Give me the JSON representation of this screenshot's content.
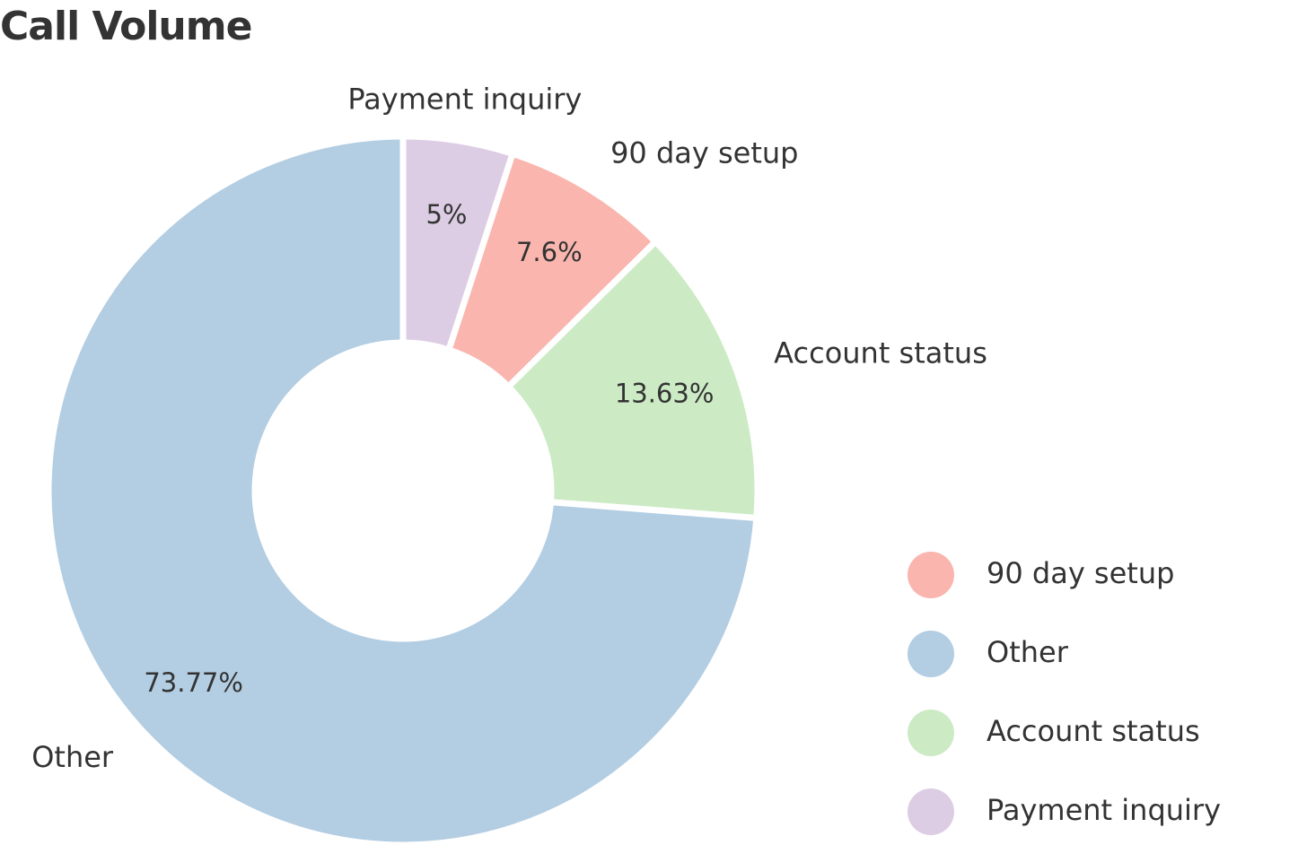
{
  "chart_data": {
    "type": "pie",
    "subtype": "donut",
    "title": "Call Volume",
    "slices": [
      {
        "name": "Payment inquiry",
        "value": 5,
        "label": "5%",
        "color": "#dccde4"
      },
      {
        "name": "90 day setup",
        "value": 7.6,
        "label": "7.6%",
        "color": "#f9b5ae"
      },
      {
        "name": "Account status",
        "value": 13.63,
        "label": "13.63%",
        "color": "#ccebc5"
      },
      {
        "name": "Other",
        "value": 73.77,
        "label": "73.77%",
        "color": "#b3cde2"
      }
    ],
    "legend": {
      "position": "bottom-right",
      "entries": [
        {
          "name": "90 day setup",
          "color": "#f9b5ae"
        },
        {
          "name": "Other",
          "color": "#b3cde2"
        },
        {
          "name": "Account status",
          "color": "#ccebc5"
        },
        {
          "name": "Payment inquiry",
          "color": "#dccde4"
        }
      ]
    }
  }
}
